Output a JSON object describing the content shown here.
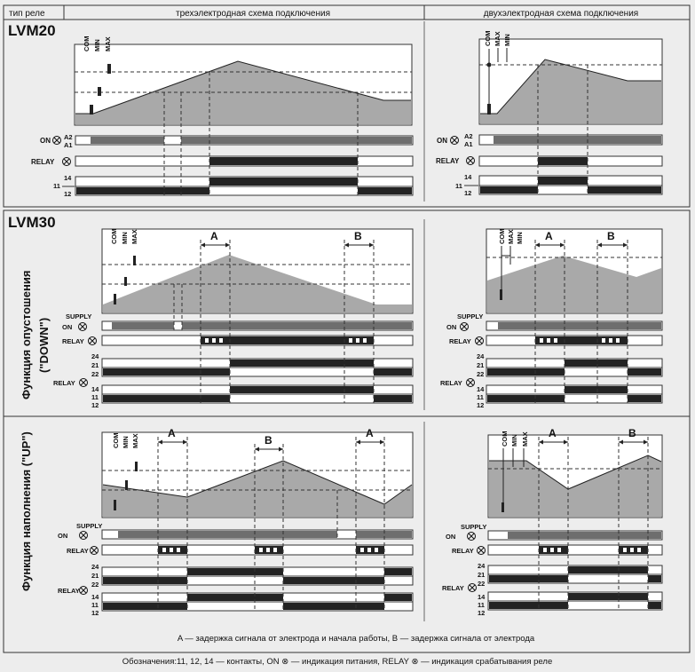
{
  "header": {
    "relay_type": "тип реле",
    "three_electrode": "трехэлектродная схема подключения",
    "two_electrode": "двухэлектродная схема подключения"
  },
  "lvm20": {
    "title": "LVM20"
  },
  "lvm30": {
    "title": "LVM30",
    "down_title": "Функция опустошения",
    "down_sub": "(\"DOWN\")",
    "up_title": "Функция наполнения (\"UP\")"
  },
  "electrodes": {
    "com": "COM",
    "min": "MIN",
    "max": "MAX"
  },
  "signals": {
    "on": "ON",
    "supply": "SUPPLY",
    "relay": "RELAY",
    "a2": "A2",
    "a1": "A1",
    "c24": "24",
    "c21": "21",
    "c22": "22",
    "c14": "14",
    "c11": "11",
    "c12": "12"
  },
  "delays": {
    "a": "A",
    "b": "B"
  },
  "notes": {
    "delays": "A — задержка сигнала от электрода и начала работы, B — задержка сигнала от электрода",
    "legend": "Обозначения:11, 12, 14 — контакты,  ON ⊗  —  индикация питания,   RELAY ⊗  —  индикация срабатывания реле"
  },
  "colors": {
    "fill": "#a9a9a9",
    "dark": "#232323",
    "bar": "#6e6e6e",
    "frame": "#333333"
  }
}
